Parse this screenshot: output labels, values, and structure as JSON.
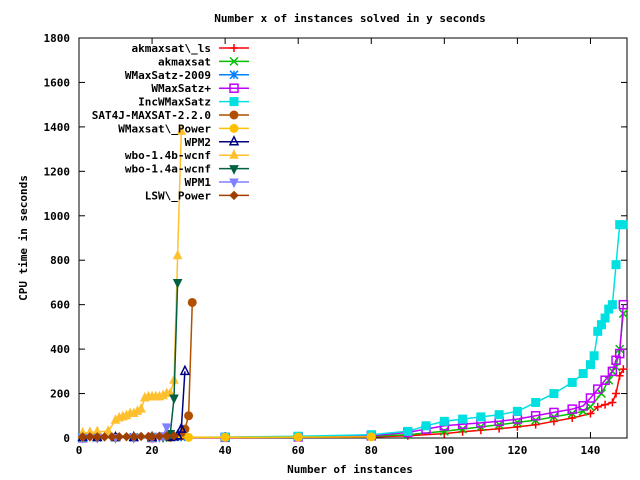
{
  "chart_data": {
    "type": "line",
    "title": "Number x of instances solved in y seconds",
    "xlabel": "Number of instances",
    "ylabel": "CPU time in seconds",
    "xlim": [
      0,
      150
    ],
    "ylim": [
      0,
      1800
    ],
    "xticks": [
      0,
      20,
      40,
      60,
      80,
      100,
      120,
      140
    ],
    "yticks": [
      0,
      200,
      400,
      600,
      800,
      1000,
      1200,
      1400,
      1600,
      1800
    ],
    "grid": false,
    "legend_position": "top-left",
    "series": [
      {
        "name": "akmaxsat\\_ls",
        "color": "#ff0000",
        "marker": "plus",
        "x": [
          1,
          20,
          40,
          60,
          80,
          90,
          100,
          105,
          110,
          115,
          120,
          125,
          130,
          135,
          140,
          142,
          144,
          146,
          147,
          148,
          149
        ],
        "y": [
          1,
          1,
          2,
          3,
          5,
          10,
          20,
          28,
          35,
          42,
          50,
          60,
          75,
          90,
          110,
          140,
          150,
          160,
          200,
          280,
          310
        ]
      },
      {
        "name": "akmaxsat",
        "color": "#00c000",
        "marker": "cross",
        "x": [
          1,
          20,
          40,
          60,
          80,
          90,
          100,
          105,
          110,
          115,
          120,
          125,
          130,
          135,
          138,
          140,
          143,
          145,
          146,
          147,
          148,
          149
        ],
        "y": [
          1,
          2,
          3,
          5,
          8,
          15,
          30,
          40,
          50,
          60,
          70,
          80,
          95,
          110,
          120,
          140,
          200,
          260,
          300,
          320,
          400,
          560
        ]
      },
      {
        "name": "WMaxSatz-2009",
        "color": "#0080ff",
        "marker": "star",
        "x": [
          1,
          5,
          10,
          15,
          20,
          25,
          27,
          28
        ],
        "y": [
          3,
          3,
          3,
          3,
          3,
          4,
          4,
          5
        ]
      },
      {
        "name": "WMaxSatz+",
        "color": "#c000ff",
        "marker": "box",
        "x": [
          1,
          20,
          40,
          60,
          80,
          90,
          95,
          100,
          105,
          110,
          115,
          120,
          125,
          130,
          135,
          138,
          140,
          142,
          144,
          146,
          147,
          148,
          149
        ],
        "y": [
          1,
          2,
          3,
          5,
          10,
          25,
          40,
          55,
          62,
          68,
          75,
          85,
          100,
          115,
          130,
          145,
          180,
          220,
          260,
          300,
          350,
          380,
          600
        ]
      },
      {
        "name": "IncWMaxSatz",
        "color": "#00e0e0",
        "marker": "fbox",
        "x": [
          1,
          20,
          40,
          60,
          80,
          90,
          95,
          100,
          105,
          110,
          115,
          120,
          125,
          130,
          135,
          138,
          140,
          141,
          142,
          143,
          144,
          145,
          146,
          147,
          148,
          149
        ],
        "y": [
          2,
          3,
          4,
          8,
          15,
          30,
          55,
          75,
          85,
          95,
          105,
          120,
          160,
          200,
          250,
          290,
          330,
          370,
          480,
          510,
          540,
          580,
          600,
          780,
          960,
          960
        ]
      },
      {
        "name": "SAT4J-MAXSAT-2.2.0",
        "color": "#b05000",
        "marker": "fcircle",
        "x": [
          1,
          5,
          10,
          15,
          20,
          25,
          28,
          29,
          30,
          31
        ],
        "y": [
          3,
          3,
          3,
          3,
          3,
          3,
          10,
          40,
          100,
          610
        ]
      },
      {
        "name": "WMaxsat\\_Power",
        "color": "#ffc000",
        "marker": "fcircle",
        "x": [
          1,
          10,
          20,
          30,
          40,
          60,
          80
        ],
        "y": [
          2,
          2,
          2,
          3,
          3,
          4,
          5
        ]
      },
      {
        "name": "WPM2",
        "color": "#000080",
        "marker": "triangle",
        "x": [
          1,
          5,
          10,
          15,
          20,
          25,
          26,
          27,
          28,
          29
        ],
        "y": [
          2,
          2,
          2,
          2,
          2,
          3,
          5,
          10,
          40,
          300
        ]
      },
      {
        "name": "wbo-1.4b-wcnf",
        "color": "#ffc030",
        "marker": "ftriangle",
        "x": [
          1,
          3,
          5,
          8,
          10,
          11,
          12,
          13,
          14,
          15,
          16,
          17,
          18,
          19,
          20,
          21,
          22,
          23,
          24,
          25,
          26,
          27,
          28
        ],
        "y": [
          22,
          25,
          28,
          30,
          80,
          90,
          95,
          100,
          110,
          110,
          120,
          130,
          180,
          185,
          185,
          185,
          185,
          190,
          200,
          200,
          260,
          820,
          1380
        ]
      },
      {
        "name": "wbo-1.4a-wcnf",
        "color": "#006040",
        "marker": "fdtriangle",
        "x": [
          1,
          5,
          10,
          15,
          20,
          23,
          24,
          25,
          26,
          27
        ],
        "y": [
          3,
          3,
          3,
          3,
          4,
          5,
          8,
          20,
          180,
          700
        ]
      },
      {
        "name": "WPM1",
        "color": "#8080ff",
        "marker": "fdtriangle",
        "x": [
          1,
          5,
          10,
          15,
          20,
          22,
          23,
          24
        ],
        "y": [
          2,
          2,
          2,
          2,
          3,
          5,
          10,
          50
        ]
      },
      {
        "name": "LSW\\_Power",
        "color": "#a04000",
        "marker": "fdiamond",
        "x": [
          1,
          3,
          5,
          7,
          9,
          11,
          13,
          15,
          17,
          19,
          20,
          22,
          24,
          26
        ],
        "y": [
          5,
          5,
          5,
          5,
          5,
          6,
          6,
          6,
          7,
          7,
          7,
          8,
          9,
          10
        ]
      }
    ]
  }
}
